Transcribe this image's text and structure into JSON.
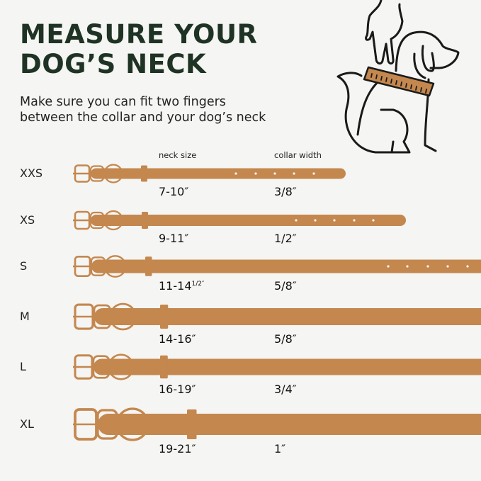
{
  "title": [
    "MEASURE YOUR",
    "DOG’S  NECK"
  ],
  "subtitle": [
    "Make sure you can fit two fingers",
    "between the collar and your dog’s neck"
  ],
  "headers": {
    "neck_size": "neck size",
    "collar_width": "collar width"
  },
  "colors": {
    "collar": "#c4874e",
    "title": "#1f3324",
    "background": "#f5f5f3"
  },
  "illustration": "hand-measuring-dog-neck-with-ruler-icon",
  "sizes": [
    {
      "size": "XXS",
      "neck": "7-10″",
      "width": "3/8″"
    },
    {
      "size": "XS",
      "neck": "9-11″",
      "width": "1/2″"
    },
    {
      "size": "S",
      "neck": "11-14",
      "neck_fraction": "1/2″",
      "width": "5/8″"
    },
    {
      "size": "M",
      "neck": "14-16″",
      "width": "5/8″"
    },
    {
      "size": "L",
      "neck": "16-19″",
      "width": "3/4″"
    },
    {
      "size": "XL",
      "neck": "19-21″",
      "width": "1″"
    }
  ]
}
